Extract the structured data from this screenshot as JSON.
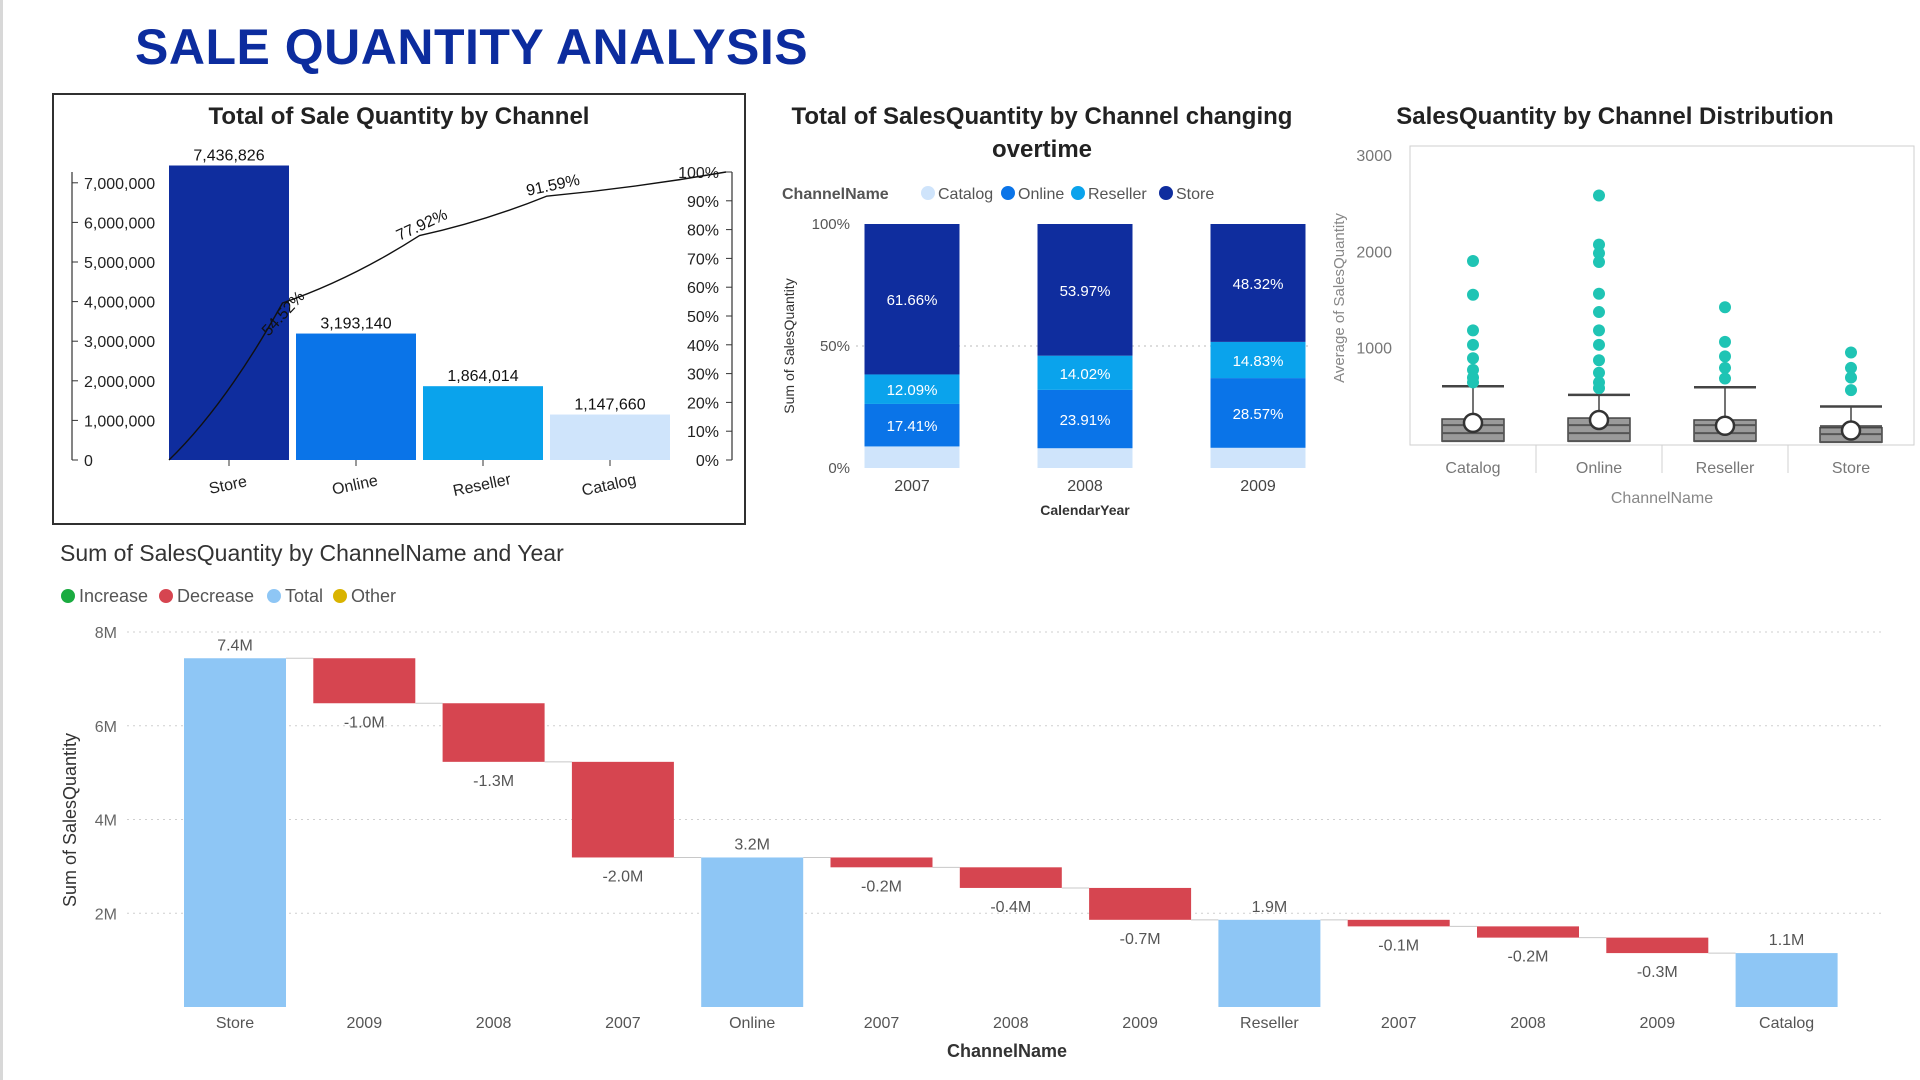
{
  "page": {
    "title": "SALE QUANTITY ANALYSIS"
  },
  "colors": {
    "store": "#0f2d9e",
    "online": "#0a74e8",
    "reseller": "#0aa3ec",
    "catalog": "#cfe4fb",
    "increase": "#1aab40",
    "decrease": "#d64550",
    "total": "#8ec6f5",
    "other": "#d9b300",
    "box_point": "#1fc4b4"
  },
  "chart_data": [
    {
      "id": "pareto",
      "type": "bar",
      "title": "Total of Sale Quantity by Channel",
      "categories": [
        "Store",
        "Online",
        "Reseller",
        "Catalog"
      ],
      "values": [
        7436826,
        3193140,
        1864014,
        1147660
      ],
      "value_labels": [
        "7,436,826",
        "3,193,140",
        "1,864,014",
        "1,147,660"
      ],
      "cumulative_pct": [
        54.52,
        77.92,
        91.59,
        100
      ],
      "cumulative_labels": [
        "54.52%",
        "77.92%",
        "91.59%"
      ],
      "ylim": [
        0,
        7500000
      ],
      "y_ticks": [
        0,
        1000000,
        2000000,
        3000000,
        4000000,
        5000000,
        6000000,
        7000000
      ],
      "y_tick_labels": [
        "0",
        "1,000,000",
        "2,000,000",
        "3,000,000",
        "4,000,000",
        "5,000,000",
        "6,000,000",
        "7,000,000"
      ],
      "y2_ticks": [
        0,
        10,
        20,
        30,
        40,
        50,
        60,
        70,
        80,
        90,
        100
      ],
      "y2_tick_labels": [
        "0%",
        "10%",
        "20%",
        "30%",
        "40%",
        "50%",
        "60%",
        "70%",
        "80%",
        "90%",
        "100%"
      ]
    },
    {
      "id": "stacked",
      "type": "bar",
      "title": "Total of SalesQuantity by Channel changing overtime",
      "legend_title": "ChannelName",
      "legend": [
        "Catalog",
        "Online",
        "Reseller",
        "Store"
      ],
      "xlabel": "CalendarYear",
      "ylabel": "Sum of SalesQuantity",
      "categories": [
        "2007",
        "2008",
        "2009"
      ],
      "series": [
        {
          "name": "Catalog",
          "values": [
            8.84,
            8.1,
            8.28
          ],
          "labels": [
            "",
            "",
            ""
          ]
        },
        {
          "name": "Online",
          "values": [
            17.41,
            23.91,
            28.57
          ],
          "labels": [
            "17.41%",
            "23.91%",
            "28.57%"
          ]
        },
        {
          "name": "Reseller",
          "values": [
            12.09,
            14.02,
            14.83
          ],
          "labels": [
            "12.09%",
            "14.02%",
            "14.83%"
          ]
        },
        {
          "name": "Store",
          "values": [
            61.66,
            53.97,
            48.32
          ],
          "labels": [
            "61.66%",
            "53.97%",
            "48.32%"
          ]
        }
      ],
      "y_ticks": [
        0,
        50,
        100
      ],
      "y_tick_labels": [
        "0%",
        "50%",
        "100%"
      ]
    },
    {
      "id": "boxplot",
      "type": "scatter",
      "title": "SalesQuantity by Channel Distribution",
      "xlabel": "ChannelName",
      "ylabel": "Average of SalesQuantity",
      "categories": [
        "Catalog",
        "Online",
        "Reseller",
        "Store"
      ],
      "ylim": [
        0,
        3000
      ],
      "y_ticks": [
        1000,
        2000,
        3000
      ],
      "y_tick_labels": [
        "1000",
        "2000",
        "3000"
      ],
      "boxes": [
        {
          "mean": 230,
          "q1": 40,
          "q3": 270,
          "upper": 610,
          "outliers": [
            1910,
            1560,
            1190,
            1040,
            900,
            780,
            700,
            650
          ]
        },
        {
          "mean": 260,
          "q1": 40,
          "q3": 280,
          "upper": 520,
          "outliers": [
            2590,
            2080,
            1990,
            1900,
            1570,
            1380,
            1190,
            1040,
            880,
            750,
            650,
            590
          ]
        },
        {
          "mean": 200,
          "q1": 40,
          "q3": 260,
          "upper": 600,
          "outliers": [
            1430,
            1070,
            920,
            800,
            690
          ]
        },
        {
          "mean": 150,
          "q1": 30,
          "q3": 180,
          "upper": 400,
          "outliers": [
            960,
            800,
            700,
            570
          ]
        }
      ]
    },
    {
      "id": "waterfall",
      "type": "bar",
      "title": "Sum of SalesQuantity by ChannelName and Year",
      "legend": [
        "Increase",
        "Decrease",
        "Total",
        "Other"
      ],
      "xlabel": "ChannelName",
      "ylabel": "Sum of SalesQuantity",
      "ylim": [
        0,
        8
      ],
      "y_ticks": [
        2,
        4,
        6,
        8
      ],
      "y_tick_labels": [
        "2M",
        "4M",
        "6M",
        "8M"
      ],
      "steps": [
        {
          "label": "Store",
          "kind": "total",
          "start": 0,
          "end": 7.44,
          "text": "7.4M"
        },
        {
          "label": "2009",
          "kind": "decrease",
          "start": 7.44,
          "end": 6.48,
          "text": "-1.0M"
        },
        {
          "label": "2008",
          "kind": "decrease",
          "start": 6.48,
          "end": 5.23,
          "text": "-1.3M"
        },
        {
          "label": "2007",
          "kind": "decrease",
          "start": 5.23,
          "end": 3.19,
          "text": "-2.0M"
        },
        {
          "label": "Online",
          "kind": "total",
          "start": 0,
          "end": 3.19,
          "text": "3.2M"
        },
        {
          "label": "2007",
          "kind": "decrease",
          "start": 3.19,
          "end": 2.98,
          "text": "-0.2M"
        },
        {
          "label": "2008",
          "kind": "decrease",
          "start": 2.98,
          "end": 2.54,
          "text": "-0.4M"
        },
        {
          "label": "2009",
          "kind": "decrease",
          "start": 2.54,
          "end": 1.86,
          "text": "-0.7M"
        },
        {
          "label": "Reseller",
          "kind": "total",
          "start": 0,
          "end": 1.86,
          "text": "1.9M"
        },
        {
          "label": "2007",
          "kind": "decrease",
          "start": 1.86,
          "end": 1.72,
          "text": "-0.1M"
        },
        {
          "label": "2008",
          "kind": "decrease",
          "start": 1.72,
          "end": 1.48,
          "text": "-0.2M"
        },
        {
          "label": "2009",
          "kind": "decrease",
          "start": 1.48,
          "end": 1.15,
          "text": "-0.3M"
        },
        {
          "label": "Catalog",
          "kind": "total",
          "start": 0,
          "end": 1.15,
          "text": "1.1M"
        }
      ]
    }
  ]
}
